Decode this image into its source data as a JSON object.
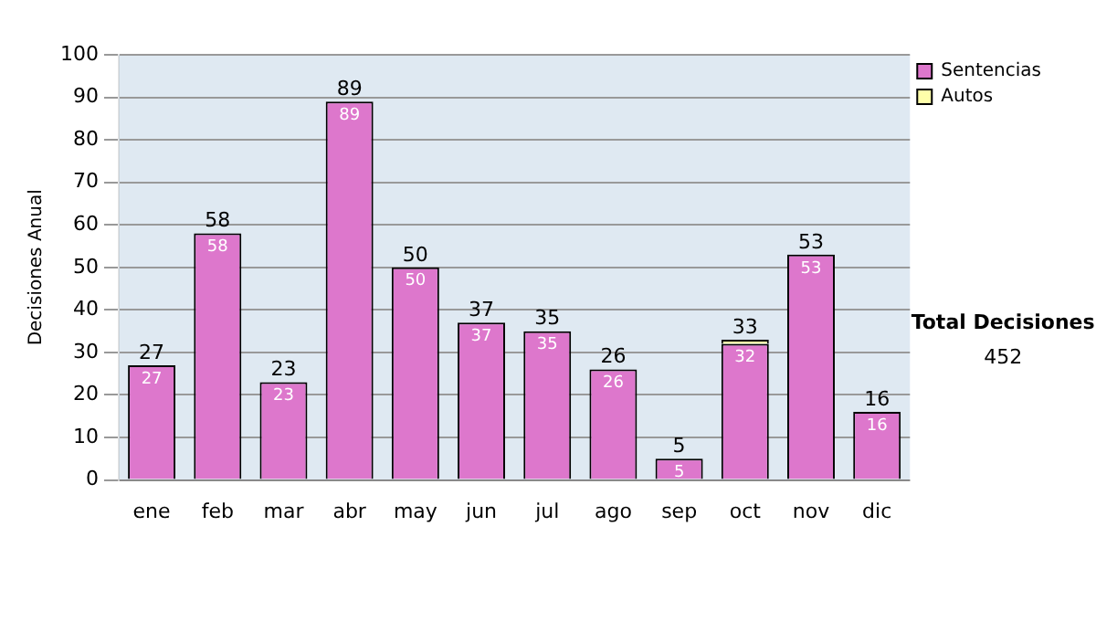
{
  "chart_data": {
    "type": "bar",
    "stacked": true,
    "ylabel": "Decisiones Anual",
    "categories": [
      "ene",
      "feb",
      "mar",
      "abr",
      "may",
      "jun",
      "jul",
      "ago",
      "sep",
      "oct",
      "nov",
      "dic"
    ],
    "series": [
      {
        "name": "Sentencias",
        "color": "#dd77cc",
        "values": [
          27,
          58,
          23,
          89,
          50,
          37,
          35,
          26,
          5,
          32,
          53,
          16
        ],
        "value_labels": [
          "27",
          "58",
          "23",
          "89",
          "50",
          "37",
          "35",
          "26",
          "5",
          "32",
          "53",
          "16"
        ]
      },
      {
        "name": "Autos",
        "color": "#ffffaa",
        "values": [
          0,
          0,
          0,
          0,
          0,
          0,
          0,
          0,
          0,
          1,
          0,
          0
        ]
      }
    ],
    "totals": [
      "27",
      "58",
      "23",
      "89",
      "50",
      "37",
      "35",
      "26",
      "5",
      "33",
      "53",
      "16"
    ],
    "ylim": [
      0,
      100
    ],
    "yticks": [
      0,
      10,
      20,
      30,
      40,
      50,
      60,
      70,
      80,
      90,
      100
    ],
    "grid": "y",
    "legend": "right",
    "annotations": [
      "Total Decisiones",
      "452"
    ]
  }
}
